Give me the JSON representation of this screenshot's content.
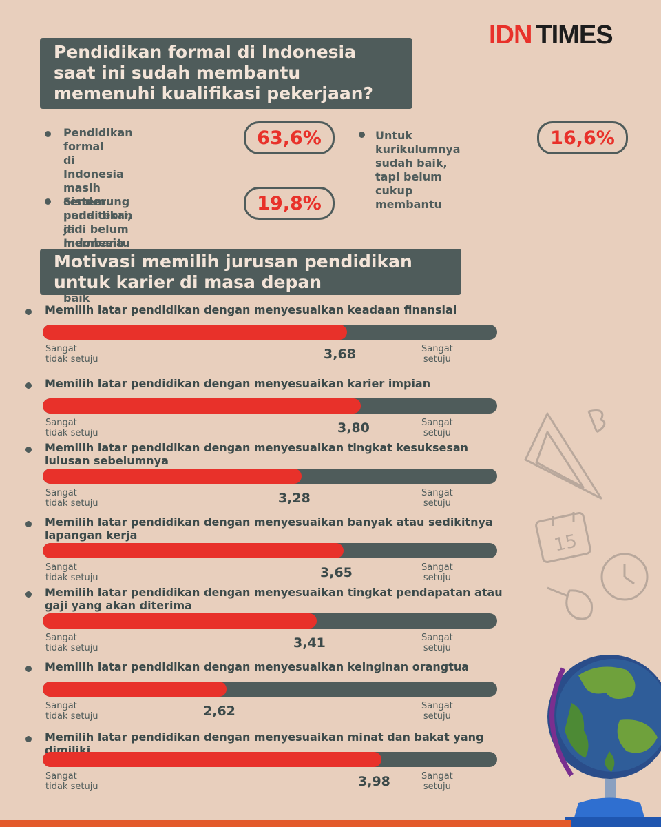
{
  "logo": {
    "idn": "IDN",
    "times": "TIMES"
  },
  "section1": {
    "title_lines": [
      "Pendidikan formal di Indonesia",
      "saat ini sudah membantu",
      "memenuhi kualifikasi pekerjaan?"
    ],
    "stats": [
      {
        "lines": [
          "Pendidikan formal",
          "di Indonesia masih",
          "cenderung pada teori,",
          "jadi belum membantu"
        ],
        "value": "63,6%"
      },
      {
        "lines": [
          "Untuk kurikulumnya",
          "sudah baik, tapi belum",
          "cukup membantu"
        ],
        "value": "16,6%"
      },
      {
        "lines": [
          "Sistem pendidikan",
          "di Indonesia sepertinya",
          "masih kurang baik"
        ],
        "value": "19,8%"
      }
    ]
  },
  "section2": {
    "title_lines": [
      "Motivasi memilih jurusan pendidikan",
      "untuk karier di masa depan"
    ],
    "scale_min_label": [
      "Sangat",
      "tidak setuju"
    ],
    "scale_max_label": [
      "Sangat",
      "setuju"
    ]
  },
  "chart_data": {
    "type": "bar",
    "orientation": "horizontal",
    "title": "Motivasi memilih jurusan pendidikan untuk karier di masa depan",
    "xlim": [
      1,
      5
    ],
    "categories": [
      [
        "Memilih latar pendidikan dengan menyesuaikan keadaan finansial"
      ],
      [
        "Memilih latar pendidikan dengan menyesuaikan karier impian"
      ],
      [
        "Memilih latar pendidikan dengan menyesuaikan tingkat kesuksesan",
        "lulusan sebelumnya"
      ],
      [
        "Memilih latar pendidikan dengan menyesuaikan banyak atau sedikitnya",
        "lapangan kerja"
      ],
      [
        "Memilih latar pendidikan dengan menyesuaikan tingkat pendapatan atau",
        "gaji yang akan diterima"
      ],
      [
        "Memilih latar pendidikan dengan menyesuaikan keinginan orangtua"
      ],
      [
        "Memilih latar pendidikan dengan menyesuaikan minat dan bakat yang dimiliki"
      ]
    ],
    "values": [
      3.68,
      3.8,
      3.28,
      3.65,
      3.41,
      2.62,
      3.98
    ],
    "value_labels": [
      "3,68",
      "3,80",
      "3,28",
      "3,65",
      "3,41",
      "2,62",
      "3,98"
    ],
    "colors": {
      "fill": "#e8312a",
      "track": "#4f5c5b"
    }
  }
}
